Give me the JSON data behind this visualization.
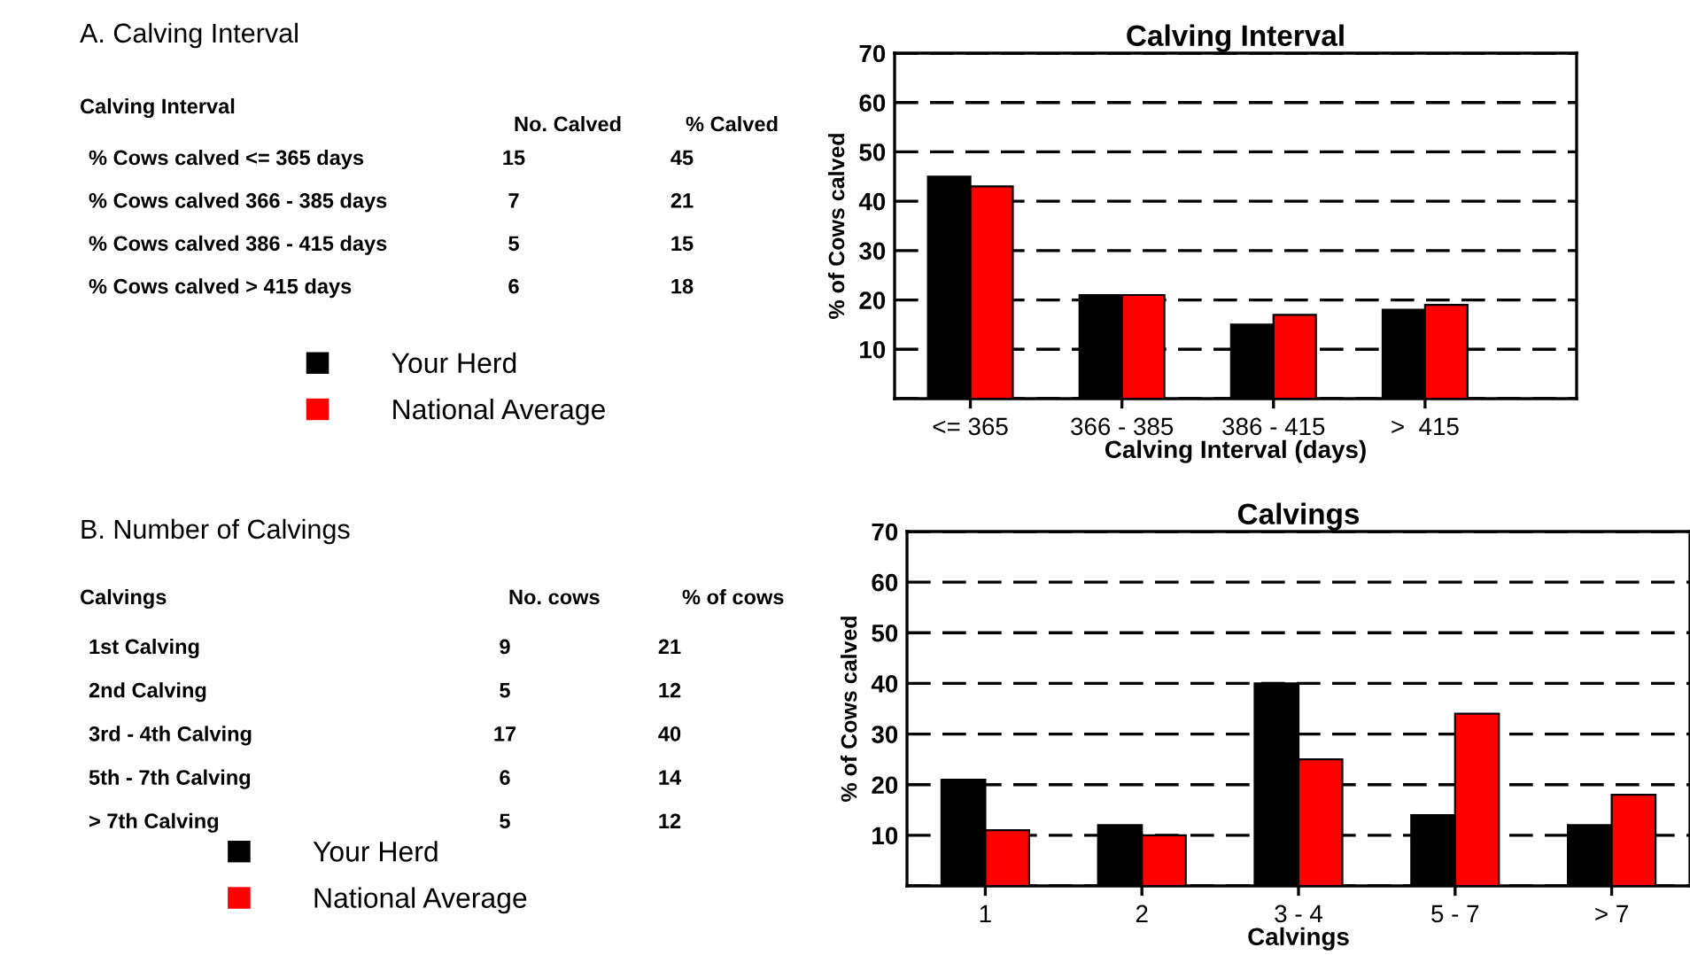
{
  "chart_data": [
    {
      "type": "bar",
      "title": "Calving Interval",
      "xlabel": "Calving Interval (days)",
      "ylabel": "% of Cows calved",
      "categories": [
        "<= 365",
        "366 - 385",
        "386 - 415",
        ">  415"
      ],
      "series": [
        {
          "name": "Your Herd",
          "color": "#000000",
          "values": [
            45,
            21,
            15,
            18
          ]
        },
        {
          "name": "National Average",
          "color": "#ff0000",
          "values": [
            43,
            21,
            17,
            19
          ]
        }
      ],
      "ylim": [
        0,
        70
      ],
      "yticks": [
        {
          "value": 0,
          "label": null
        },
        10,
        20,
        30,
        40,
        50,
        60,
        70
      ],
      "grid": "y",
      "legend": "left",
      "annotations": [
        "A. Calving Interval",
        "Calving Interval",
        "No. Calved",
        "% Calved",
        "% Cows calved <= 365 days",
        "15",
        "45",
        "% Cows calved 366 - 385 days",
        "7",
        "21",
        "% Cows calved 386 - 415 days",
        "5",
        "15",
        "% Cows calved > 415 days",
        "6",
        "18"
      ]
    },
    {
      "type": "bar",
      "title": "Calvings",
      "xlabel": "Calvings",
      "ylabel": "% of Cows calved",
      "categories": [
        "1",
        "2",
        "3 - 4",
        "5 - 7",
        "> 7"
      ],
      "series": [
        {
          "name": "Your Herd",
          "color": "#000000",
          "values": [
            21,
            12,
            40,
            14,
            12
          ]
        },
        {
          "name": "National Average",
          "color": "#ff0000",
          "values": [
            11,
            10,
            25,
            34,
            18
          ]
        }
      ],
      "ylim": [
        0,
        70
      ],
      "yticks": [
        {
          "value": 0,
          "label": null
        },
        10,
        20,
        30,
        40,
        50,
        60,
        70
      ],
      "grid": "y",
      "legend": "left",
      "annotations": [
        "B. Number of Calvings",
        "Calvings",
        "No. cows",
        "% of cows",
        "1st Calving",
        "9",
        "21",
        "2nd Calving",
        "5",
        "12",
        "3rd - 4th Calving",
        "17",
        "40",
        "5th - 7th Calving",
        "6",
        "14",
        "> 7th Calving",
        "5",
        "12"
      ]
    }
  ]
}
